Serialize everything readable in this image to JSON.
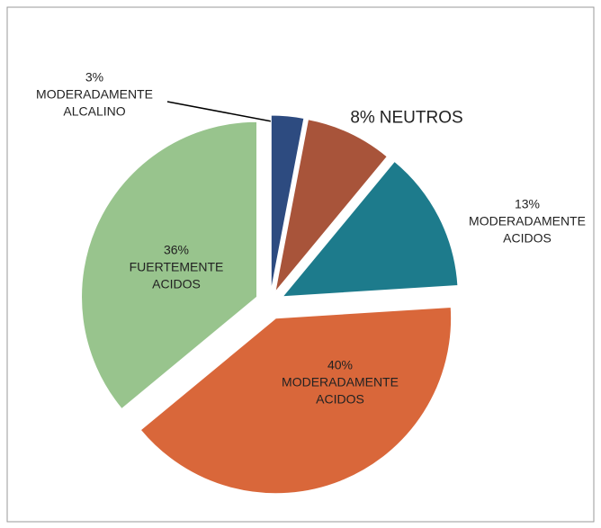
{
  "chart_data": {
    "type": "pie",
    "categories": [
      "MODERADAMENTE ALCALINO",
      "NEUTROS",
      "MODERADAMENTE ACIDOS",
      "MODERADAMENTE ACIDOS",
      "FUERTEMENTE ACIDOS"
    ],
    "values": [
      3,
      8,
      13,
      40,
      36
    ],
    "value_labels": [
      "3%",
      "8%",
      "13%",
      "40%",
      "36%"
    ],
    "colors": [
      "#2d4b80",
      "#a8543a",
      "#1d7b8c",
      "#d9673a",
      "#98c48d"
    ]
  }
}
